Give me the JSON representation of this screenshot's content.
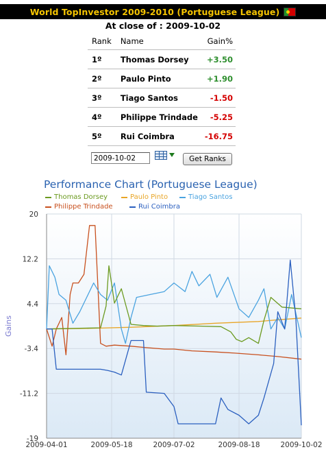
{
  "header": {
    "title": "World TopInvestor 2009-2010 (Portuguese League)",
    "flag_icon": "portugal-flag-icon"
  },
  "close_line": {
    "label": "At close of :",
    "date": "2009-10-02"
  },
  "ranking": {
    "columns": [
      "Rank",
      "Name",
      "Gain%"
    ],
    "rows": [
      {
        "rank": "1º",
        "name": "Thomas Dorsey",
        "gain": "+3.50"
      },
      {
        "rank": "2º",
        "name": "Paulo Pinto",
        "gain": "+1.90"
      },
      {
        "rank": "3º",
        "name": "Tiago Santos",
        "gain": "-1.50"
      },
      {
        "rank": "4º",
        "name": "Philippe Trindade",
        "gain": "-5.25"
      },
      {
        "rank": "5º",
        "name": "Rui Coimbra",
        "gain": "-16.75"
      }
    ]
  },
  "controls": {
    "date_value": "2009-10-02",
    "calendar_icon": "calendar-icon",
    "get_ranks_label": "Get Ranks"
  },
  "colors": {
    "title_text": "#f5c400",
    "positive": "#2f8f2f",
    "negative": "#d40000",
    "series_thomas": "#6b9a1f",
    "series_paulo": "#e8a526",
    "series_tiago": "#4aa3e0",
    "series_philippe": "#c8501e",
    "series_rui": "#2a5fbf"
  },
  "chart_data": {
    "type": "line",
    "title": "Performance Chart (Portuguese League)",
    "ylabel": "Gains",
    "xlabel": "",
    "ylim": [
      -19,
      20
    ],
    "yticks": [
      "20",
      "12.2",
      "4.4",
      "-3.4",
      "-11.2",
      "-19"
    ],
    "xticks": [
      "2009-04-01",
      "2009-05-18",
      "2009-07-02",
      "2009-08-18",
      "2009-10-02"
    ],
    "grid": true,
    "legend_position": "top",
    "series": [
      {
        "name": "Thomas Dorsey",
        "x": [
          "2009-04-01",
          "2009-05-10",
          "2009-05-14",
          "2009-05-16",
          "2009-05-20",
          "2009-05-25",
          "2009-06-01",
          "2009-06-10",
          "2009-06-20",
          "2009-07-02",
          "2009-07-20",
          "2009-08-05",
          "2009-08-12",
          "2009-08-16",
          "2009-08-20",
          "2009-08-25",
          "2009-09-01",
          "2009-09-05",
          "2009-09-10",
          "2009-09-18",
          "2009-10-02"
        ],
        "values": [
          0,
          0.2,
          4,
          11,
          4.5,
          7,
          0.8,
          0.6,
          0.5,
          0.6,
          0.5,
          0.4,
          -0.5,
          -1.8,
          -2.2,
          -1.5,
          -2.5,
          1.5,
          5.5,
          3.8,
          3.5
        ]
      },
      {
        "name": "Paulo Pinto",
        "x": [
          "2009-04-01",
          "2009-05-01",
          "2009-06-01",
          "2009-07-02",
          "2009-08-01",
          "2009-09-01",
          "2009-09-15",
          "2009-10-02"
        ],
        "values": [
          0,
          0.1,
          0.3,
          0.6,
          1.0,
          1.3,
          1.6,
          1.9
        ]
      },
      {
        "name": "Tiago Santos",
        "x": [
          "2009-04-01",
          "2009-04-03",
          "2009-04-07",
          "2009-04-10",
          "2009-04-15",
          "2009-04-20",
          "2009-04-25",
          "2009-05-05",
          "2009-05-10",
          "2009-05-15",
          "2009-05-20",
          "2009-05-25",
          "2009-05-28",
          "2009-06-01",
          "2009-06-05",
          "2009-06-15",
          "2009-06-25",
          "2009-07-02",
          "2009-07-10",
          "2009-07-15",
          "2009-07-20",
          "2009-07-28",
          "2009-08-02",
          "2009-08-10",
          "2009-08-18",
          "2009-08-25",
          "2009-09-01",
          "2009-09-05",
          "2009-09-10",
          "2009-09-15",
          "2009-09-20",
          "2009-09-25",
          "2009-10-02"
        ],
        "values": [
          0,
          11,
          9,
          6,
          5,
          1,
          3,
          8,
          6,
          5,
          8,
          0,
          -2.5,
          2,
          5.5,
          6,
          6.5,
          8,
          6.5,
          10,
          7.5,
          9.5,
          5.5,
          9,
          3.5,
          2,
          5,
          7,
          0,
          2,
          0,
          6,
          -1.5
        ]
      },
      {
        "name": "Philippe Trindade",
        "x": [
          "2009-04-01",
          "2009-04-05",
          "2009-04-08",
          "2009-04-12",
          "2009-04-15",
          "2009-04-18",
          "2009-04-20",
          "2009-04-24",
          "2009-04-28",
          "2009-05-02",
          "2009-05-06",
          "2009-05-10",
          "2009-05-14",
          "2009-05-20",
          "2009-06-01",
          "2009-06-10",
          "2009-06-25",
          "2009-07-02",
          "2009-07-15",
          "2009-08-01",
          "2009-08-15",
          "2009-09-01",
          "2009-09-15",
          "2009-10-02"
        ],
        "values": [
          0,
          -3,
          0,
          2,
          -4.5,
          6,
          8,
          8,
          9.5,
          18,
          18,
          -2.5,
          -3,
          -2.8,
          -3,
          -3.2,
          -3.5,
          -3.5,
          -3.8,
          -4.0,
          -4.2,
          -4.5,
          -4.8,
          -5.25
        ]
      },
      {
        "name": "Rui Coimbra",
        "x": [
          "2009-04-01",
          "2009-04-05",
          "2009-04-08",
          "2009-05-01",
          "2009-05-10",
          "2009-05-15",
          "2009-05-20",
          "2009-05-25",
          "2009-06-01",
          "2009-06-10",
          "2009-06-12",
          "2009-06-25",
          "2009-07-02",
          "2009-07-05",
          "2009-07-20",
          "2009-08-01",
          "2009-08-05",
          "2009-08-10",
          "2009-08-18",
          "2009-08-25",
          "2009-09-01",
          "2009-09-05",
          "2009-09-12",
          "2009-09-15",
          "2009-09-20",
          "2009-09-24",
          "2009-09-28",
          "2009-10-02"
        ],
        "values": [
          0,
          0,
          -7,
          -7,
          -7,
          -7.2,
          -7.5,
          -8,
          -2,
          -2,
          -11,
          -11.2,
          -13.5,
          -16.5,
          -16.5,
          -16.5,
          -12,
          -14,
          -15,
          -16.5,
          -15,
          -12,
          -6,
          3,
          0,
          12,
          2,
          -16.75
        ]
      }
    ]
  }
}
